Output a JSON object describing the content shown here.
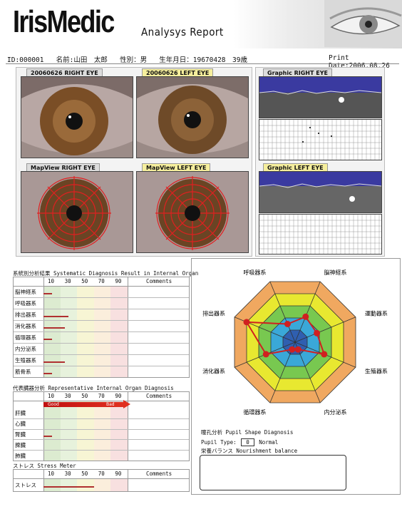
{
  "header": {
    "brand": "IrisMedic",
    "subtitle": "Analysys Report"
  },
  "patient": {
    "id": "ID:000001",
    "name": "名前:山田　太郎",
    "sex": "性別：男",
    "birth": "生年月日：19670428　39歳",
    "print_date": "Print Date:2006.08.26"
  },
  "images": {
    "right_eye_label": "20060626 RIGHT EYE",
    "left_eye_label": "20060626 LEFT EYE",
    "map_right_label": "MapView RIGHT EYE",
    "map_left_label": "MapView LEFT EYE",
    "graphic_right_label": "Graphic RIGHT EYE",
    "graphic_left_label": "Graphic LEFT EYE"
  },
  "scale": [
    "10",
    "30",
    "50",
    "70",
    "90"
  ],
  "comments_label": "Comments",
  "systematic": {
    "title": "系統別分析結果 Systematic Diagnosis Result in Internal Organ",
    "rows": [
      {
        "label": "脳神経系",
        "value": 10
      },
      {
        "label": "呼吸器系",
        "value": 0
      },
      {
        "label": "排出器系",
        "value": 30
      },
      {
        "label": "消化器系",
        "value": 25
      },
      {
        "label": "循環器系",
        "value": 10
      },
      {
        "label": "内分泌系",
        "value": 0
      },
      {
        "label": "生殖器系",
        "value": 25
      },
      {
        "label": "筋骨系",
        "value": 10
      }
    ]
  },
  "representative": {
    "title": "代表臓器分析 Representative Internal Organ Diagnosis",
    "good_label": "Good",
    "bad_label": "Bad",
    "rows": [
      {
        "label": "肝臓",
        "value": 0
      },
      {
        "label": "心臓",
        "value": 0
      },
      {
        "label": "腎臓",
        "value": 10
      },
      {
        "label": "脾臓",
        "value": 0
      },
      {
        "label": "肺臓",
        "value": 0
      }
    ]
  },
  "stress": {
    "title": "ストレス Stress Meter",
    "rows": [
      {
        "label": "ストレス",
        "value": 60
      }
    ]
  },
  "radar": {
    "axes": [
      "脳神経系",
      "運動器系",
      "生殖器系",
      "内分泌系",
      "循環器系",
      "消化器系",
      "排出器系",
      "呼吸器系"
    ],
    "values": [
      2.1,
      1.8,
      2.4,
      0.6,
      0.6,
      2.4,
      4.0,
      1.5
    ],
    "max": 5,
    "ring_colors": [
      "#2f5fb0",
      "#3aa8d8",
      "#78c850",
      "#e8e830",
      "#f0a860"
    ],
    "line_color": "#d02020"
  },
  "pupil": {
    "title": "瞳孔分析 Pupil Shape Diagnosis",
    "type_label": "Pupil Type:",
    "type_value": "0",
    "type_text": "Normal",
    "nourish": "栄養バランス Nourishment balance"
  }
}
